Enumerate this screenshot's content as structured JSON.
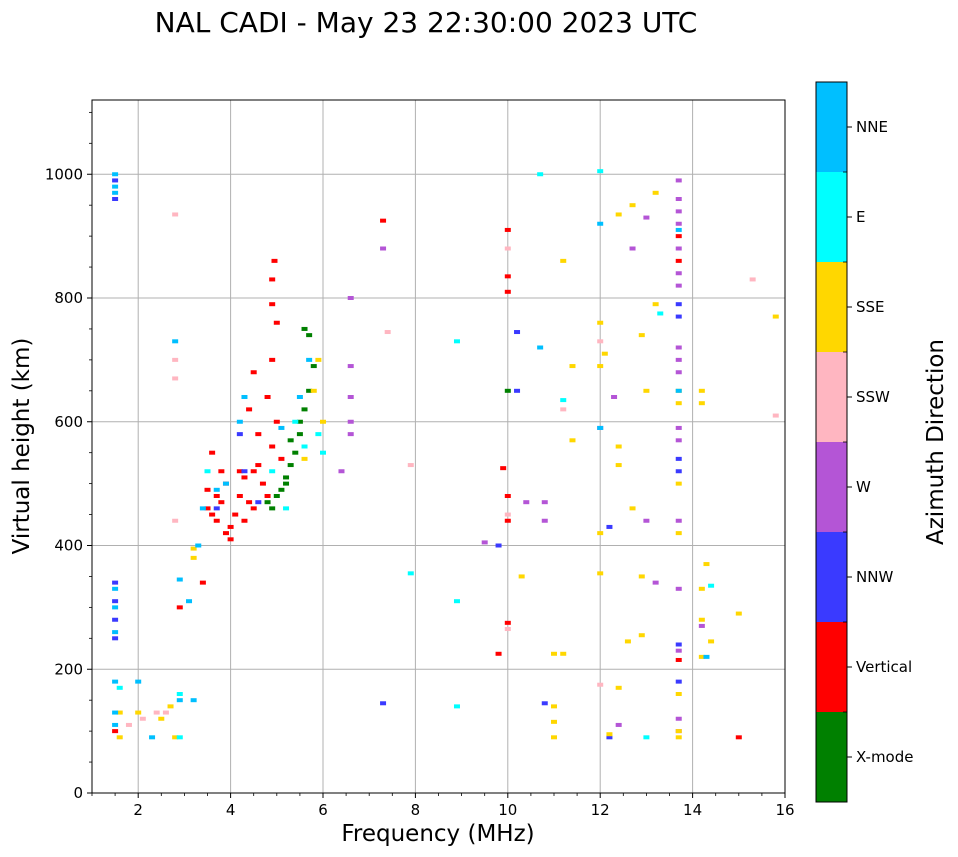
{
  "chart_data": {
    "type": "scatter",
    "title": "NAL CADI - May 23 22:30:00 2023 UTC",
    "xlabel": "Frequency (MHz)",
    "ylabel": "Virtual height (km)",
    "xlim": [
      1,
      16
    ],
    "ylim": [
      0,
      1120
    ],
    "xticks": [
      2,
      4,
      6,
      8,
      10,
      12,
      14,
      16
    ],
    "yticks": [
      0,
      200,
      400,
      600,
      800,
      1000
    ],
    "grid": true,
    "colorbar": {
      "label": "Azimuth Direction",
      "categories": [
        {
          "name": "X-mode",
          "color": "#008000"
        },
        {
          "name": "Vertical",
          "color": "#ff0000"
        },
        {
          "name": "NNW",
          "color": "#3a3aff"
        },
        {
          "name": "W",
          "color": "#b455d6"
        },
        {
          "name": "SSW",
          "color": "#ffb6c1"
        },
        {
          "name": "SSE",
          "color": "#ffd700"
        },
        {
          "name": "E",
          "color": "#00ffff"
        },
        {
          "name": "NNE",
          "color": "#00bfff"
        }
      ]
    },
    "series": [
      {
        "name": "Vertical",
        "points": [
          [
            3.5,
            460
          ],
          [
            3.6,
            450
          ],
          [
            3.7,
            440
          ],
          [
            3.8,
            470
          ],
          [
            3.9,
            420
          ],
          [
            4.0,
            430
          ],
          [
            4.1,
            450
          ],
          [
            4.2,
            480
          ],
          [
            4.2,
            520
          ],
          [
            4.3,
            510
          ],
          [
            4.4,
            470
          ],
          [
            4.5,
            460
          ],
          [
            4.5,
            520
          ],
          [
            4.6,
            530
          ],
          [
            4.7,
            500
          ],
          [
            4.8,
            480
          ],
          [
            4.9,
            560
          ],
          [
            5.0,
            600
          ],
          [
            4.8,
            640
          ],
          [
            4.9,
            700
          ],
          [
            5.0,
            760
          ],
          [
            4.9,
            790
          ],
          [
            4.9,
            830
          ],
          [
            4.95,
            860
          ],
          [
            3.6,
            550
          ],
          [
            3.4,
            340
          ],
          [
            2.9,
            300
          ],
          [
            1.5,
            100
          ],
          [
            10.0,
            910
          ],
          [
            10.0,
            835
          ],
          [
            10.0,
            810
          ],
          [
            9.9,
            525
          ],
          [
            10.0,
            480
          ],
          [
            10.0,
            440
          ],
          [
            10.0,
            275
          ],
          [
            9.8,
            225
          ],
          [
            13.7,
            900
          ],
          [
            13.7,
            860
          ],
          [
            13.7,
            215
          ],
          [
            15.0,
            90
          ],
          [
            7.3,
            925
          ],
          [
            4.0,
            410
          ],
          [
            4.3,
            440
          ],
          [
            3.7,
            480
          ],
          [
            3.9,
            500
          ],
          [
            4.6,
            580
          ],
          [
            4.4,
            620
          ],
          [
            4.5,
            680
          ],
          [
            5.1,
            540
          ],
          [
            3.5,
            490
          ],
          [
            3.8,
            520
          ]
        ]
      },
      {
        "name": "X-mode",
        "points": [
          [
            4.8,
            470
          ],
          [
            5.0,
            480
          ],
          [
            5.1,
            490
          ],
          [
            5.2,
            510
          ],
          [
            5.3,
            530
          ],
          [
            5.4,
            550
          ],
          [
            5.5,
            580
          ],
          [
            5.6,
            620
          ],
          [
            5.7,
            650
          ],
          [
            5.8,
            690
          ],
          [
            5.7,
            740
          ],
          [
            5.6,
            750
          ],
          [
            5.5,
            600
          ],
          [
            5.3,
            570
          ],
          [
            5.2,
            500
          ],
          [
            4.9,
            460
          ],
          [
            10.0,
            650
          ]
        ]
      },
      {
        "name": "NNW",
        "points": [
          [
            1.5,
            990
          ],
          [
            1.5,
            960
          ],
          [
            1.5,
            340
          ],
          [
            1.5,
            310
          ],
          [
            1.5,
            280
          ],
          [
            1.5,
            250
          ],
          [
            4.3,
            520
          ],
          [
            4.2,
            580
          ],
          [
            3.7,
            460
          ],
          [
            10.2,
            745
          ],
          [
            10.2,
            650
          ],
          [
            13.7,
            790
          ],
          [
            13.7,
            770
          ],
          [
            13.7,
            540
          ],
          [
            13.7,
            520
          ],
          [
            13.7,
            240
          ],
          [
            13.7,
            180
          ],
          [
            12.2,
            430
          ],
          [
            12.2,
            90
          ],
          [
            9.8,
            400
          ],
          [
            10.8,
            145
          ],
          [
            7.3,
            145
          ],
          [
            4.6,
            470
          ]
        ]
      },
      {
        "name": "W",
        "points": [
          [
            6.6,
            800
          ],
          [
            6.6,
            690
          ],
          [
            6.6,
            640
          ],
          [
            6.6,
            600
          ],
          [
            6.6,
            580
          ],
          [
            6.4,
            520
          ],
          [
            7.3,
            880
          ],
          [
            10.4,
            470
          ],
          [
            10.8,
            470
          ],
          [
            10.8,
            440
          ],
          [
            12.0,
            590
          ],
          [
            12.3,
            640
          ],
          [
            12.7,
            880
          ],
          [
            13.0,
            930
          ],
          [
            13.2,
            340
          ],
          [
            13.0,
            440
          ],
          [
            13.7,
            990
          ],
          [
            13.7,
            960
          ],
          [
            13.7,
            940
          ],
          [
            13.7,
            920
          ],
          [
            13.7,
            880
          ],
          [
            13.7,
            840
          ],
          [
            13.7,
            820
          ],
          [
            13.7,
            720
          ],
          [
            13.7,
            700
          ],
          [
            13.7,
            680
          ],
          [
            13.7,
            590
          ],
          [
            13.7,
            570
          ],
          [
            13.7,
            440
          ],
          [
            13.7,
            330
          ],
          [
            13.7,
            230
          ],
          [
            13.7,
            120
          ],
          [
            13.7,
            100
          ],
          [
            14.2,
            270
          ],
          [
            12.4,
            110
          ],
          [
            9.5,
            405
          ]
        ]
      },
      {
        "name": "SSW",
        "points": [
          [
            2.8,
            935
          ],
          [
            2.8,
            700
          ],
          [
            2.8,
            670
          ],
          [
            2.8,
            440
          ],
          [
            7.4,
            745
          ],
          [
            7.9,
            530
          ],
          [
            10.0,
            880
          ],
          [
            10.0,
            450
          ],
          [
            10.0,
            265
          ],
          [
            12.0,
            730
          ],
          [
            12.0,
            175
          ],
          [
            11.2,
            620
          ],
          [
            15.3,
            830
          ],
          [
            15.8,
            610
          ],
          [
            1.8,
            110
          ],
          [
            2.1,
            120
          ],
          [
            2.4,
            130
          ],
          [
            2.6,
            130
          ]
        ]
      },
      {
        "name": "SSE",
        "points": [
          [
            12.4,
            935
          ],
          [
            12.7,
            950
          ],
          [
            13.2,
            970
          ],
          [
            11.2,
            860
          ],
          [
            13.2,
            790
          ],
          [
            12.9,
            740
          ],
          [
            12.1,
            710
          ],
          [
            12.0,
            690
          ],
          [
            11.4,
            690
          ],
          [
            12.0,
            760
          ],
          [
            13.0,
            650
          ],
          [
            13.7,
            650
          ],
          [
            13.7,
            630
          ],
          [
            14.2,
            650
          ],
          [
            14.2,
            630
          ],
          [
            14.3,
            370
          ],
          [
            14.2,
            330
          ],
          [
            14.2,
            280
          ],
          [
            14.2,
            220
          ],
          [
            14.4,
            245
          ],
          [
            15.0,
            290
          ],
          [
            15.8,
            770
          ],
          [
            12.4,
            560
          ],
          [
            12.4,
            530
          ],
          [
            12.7,
            460
          ],
          [
            12.9,
            350
          ],
          [
            12.6,
            245
          ],
          [
            12.9,
            255
          ],
          [
            12.4,
            170
          ],
          [
            12.0,
            420
          ],
          [
            12.0,
            355
          ],
          [
            11.4,
            570
          ],
          [
            10.3,
            350
          ],
          [
            11.0,
            225
          ],
          [
            11.2,
            225
          ],
          [
            11.0,
            140
          ],
          [
            11.0,
            115
          ],
          [
            11.0,
            90
          ],
          [
            12.2,
            95
          ],
          [
            13.7,
            500
          ],
          [
            13.7,
            420
          ],
          [
            13.7,
            160
          ],
          [
            13.7,
            90
          ],
          [
            13.7,
            100
          ],
          [
            5.9,
            700
          ],
          [
            5.8,
            650
          ],
          [
            6.0,
            600
          ],
          [
            5.6,
            540
          ],
          [
            1.6,
            90
          ],
          [
            2.0,
            130
          ],
          [
            2.5,
            120
          ],
          [
            2.7,
            140
          ],
          [
            3.2,
            380
          ],
          [
            3.2,
            395
          ],
          [
            2.8,
            90
          ],
          [
            1.6,
            130
          ]
        ]
      },
      {
        "name": "E",
        "points": [
          [
            8.9,
            730
          ],
          [
            8.9,
            310
          ],
          [
            8.9,
            140
          ],
          [
            7.9,
            355
          ],
          [
            10.7,
            1000
          ],
          [
            12.0,
            1005
          ],
          [
            11.2,
            635
          ],
          [
            13.3,
            775
          ],
          [
            13.0,
            90
          ],
          [
            14.4,
            335
          ],
          [
            6.0,
            550
          ],
          [
            5.9,
            580
          ],
          [
            5.6,
            560
          ],
          [
            5.4,
            600
          ],
          [
            4.9,
            520
          ],
          [
            5.2,
            460
          ],
          [
            1.6,
            170
          ],
          [
            2.9,
            90
          ],
          [
            2.9,
            160
          ],
          [
            3.5,
            520
          ]
        ]
      },
      {
        "name": "NNE",
        "points": [
          [
            1.5,
            1000
          ],
          [
            1.5,
            980
          ],
          [
            1.5,
            970
          ],
          [
            1.5,
            330
          ],
          [
            1.5,
            300
          ],
          [
            1.5,
            260
          ],
          [
            1.5,
            180
          ],
          [
            1.5,
            130
          ],
          [
            1.5,
            110
          ],
          [
            2.0,
            180
          ],
          [
            2.3,
            90
          ],
          [
            2.9,
            150
          ],
          [
            3.1,
            310
          ],
          [
            3.3,
            400
          ],
          [
            3.4,
            460
          ],
          [
            3.7,
            490
          ],
          [
            3.9,
            500
          ],
          [
            4.2,
            600
          ],
          [
            4.3,
            640
          ],
          [
            10.7,
            720
          ],
          [
            12.0,
            920
          ],
          [
            12.0,
            590
          ],
          [
            13.7,
            910
          ],
          [
            13.7,
            650
          ],
          [
            14.3,
            220
          ],
          [
            5.1,
            590
          ],
          [
            5.5,
            640
          ],
          [
            5.7,
            700
          ],
          [
            3.2,
            150
          ],
          [
            2.9,
            345
          ],
          [
            2.8,
            730
          ]
        ]
      }
    ]
  }
}
